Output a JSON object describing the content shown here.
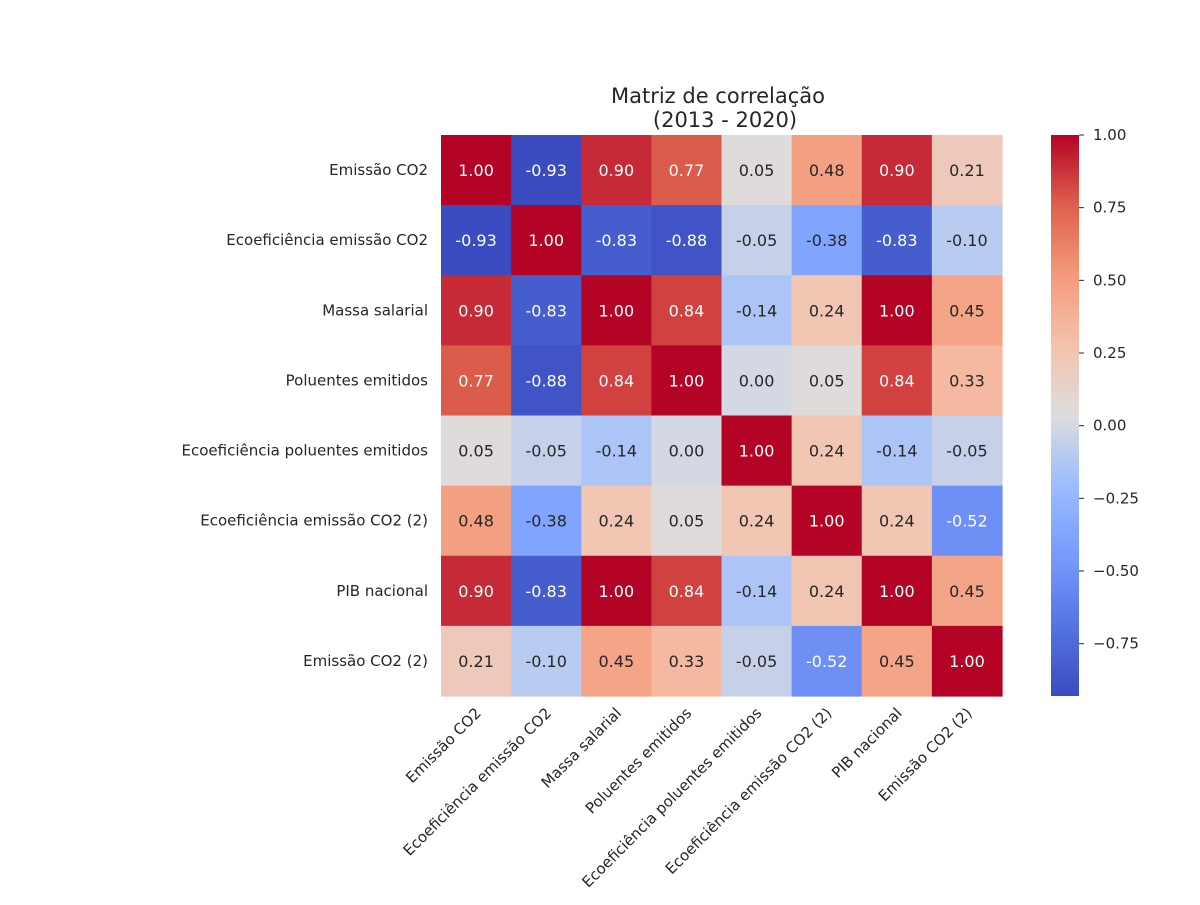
{
  "chart_data": {
    "type": "heatmap",
    "title_line1": "Matriz de correlação",
    "title_line2": "(2013 - 2020)",
    "xlabel": "",
    "ylabel": "",
    "row_labels": [
      "Emissão CO2",
      "Ecoeficiência emissão CO2",
      "Massa salarial",
      "Poluentes emitidos",
      "Ecoeficiência poluentes emitidos",
      "Ecoeficiência emissão CO2 (2)",
      "PIB nacional",
      "Emissão CO2 (2)"
    ],
    "col_labels": [
      "Emissão CO2",
      "Ecoeficiência emissão CO2",
      "Massa salarial",
      "Poluentes emitidos",
      "Ecoeficiência poluentes emitidos",
      "Ecoeficiência emissão CO2 (2)",
      "PIB nacional",
      "Emissão CO2 (2)"
    ],
    "values": [
      [
        1.0,
        -0.93,
        0.9,
        0.77,
        0.05,
        0.48,
        0.9,
        0.21
      ],
      [
        -0.93,
        1.0,
        -0.83,
        -0.88,
        -0.05,
        -0.38,
        -0.83,
        -0.1
      ],
      [
        0.9,
        -0.83,
        1.0,
        0.84,
        -0.14,
        0.24,
        1.0,
        0.45
      ],
      [
        0.77,
        -0.88,
        0.84,
        1.0,
        0.0,
        0.05,
        0.84,
        0.33
      ],
      [
        0.05,
        -0.05,
        -0.14,
        0.0,
        1.0,
        0.24,
        -0.14,
        -0.05
      ],
      [
        0.48,
        -0.38,
        0.24,
        0.05,
        0.24,
        1.0,
        0.24,
        -0.52
      ],
      [
        0.9,
        -0.83,
        1.0,
        0.84,
        -0.14,
        0.24,
        1.0,
        0.45
      ],
      [
        0.21,
        -0.1,
        0.45,
        0.33,
        -0.05,
        -0.52,
        0.45,
        1.0
      ]
    ],
    "value_format": "0.00",
    "colormap": "coolwarm",
    "color_range": [
      -0.93,
      1.0
    ],
    "colorbar": {
      "ticks": [
        1.0,
        0.75,
        0.5,
        0.25,
        0.0,
        -0.25,
        -0.5,
        -0.75
      ],
      "tick_labels": [
        "1.00",
        "0.75",
        "0.50",
        "0.25",
        "0.00",
        "−0.25",
        "−0.50",
        "−0.75"
      ]
    },
    "grid": false,
    "legend": "colorbar-right"
  }
}
